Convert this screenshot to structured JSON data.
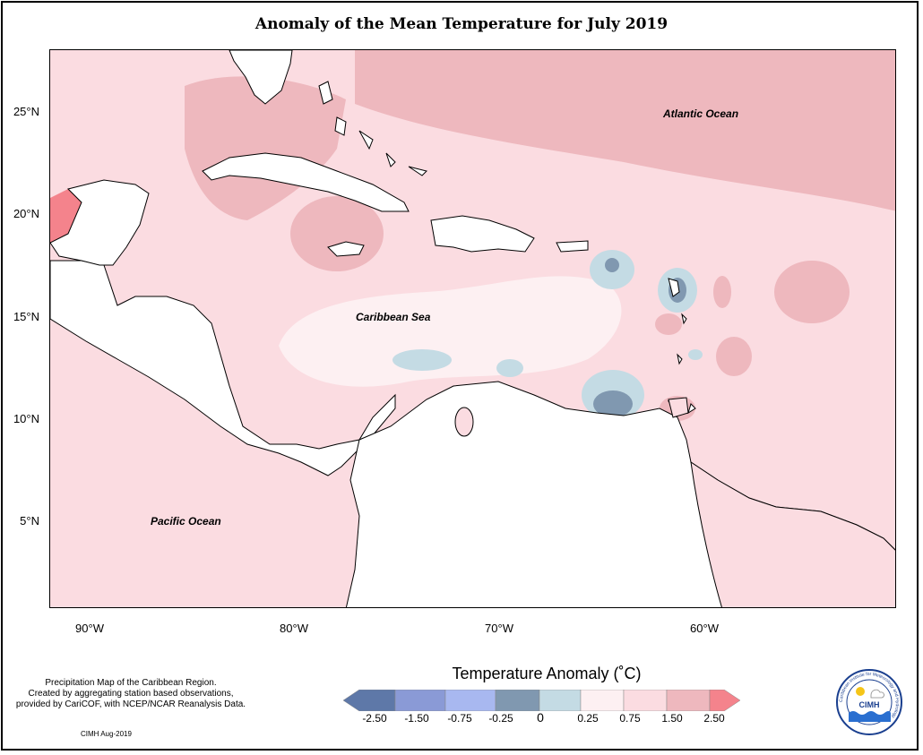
{
  "title": "Anomaly of the Mean Temperature for July 2019",
  "axes": {
    "lat_ticks": [
      "25°N",
      "20°N",
      "15°N",
      "10°N",
      "5°N"
    ],
    "lon_ticks": [
      "90°W",
      "80°W",
      "70°W",
      "60°W"
    ]
  },
  "labels": {
    "atlantic": "Atlantic Ocean",
    "caribbean": "Caribbean Sea",
    "pacific": "Pacific Ocean"
  },
  "credit": {
    "line1": "Precipitation Map of the Caribbean Region.",
    "line2": "Created by aggregating station based observations,",
    "line3": "provided by CariCOF, with NCEP/NCAR Reanalysis Data.",
    "date": "CIMH Aug-2019"
  },
  "legend": {
    "title": "Temperature Anomaly (˚C)",
    "labels": [
      "-2.50",
      "-1.50",
      "-0.75",
      "-0.25",
      "0",
      "0.25",
      "0.75",
      "1.50",
      "2.50"
    ],
    "colors": [
      "#5e78a8",
      "#8a9ad6",
      "#a8b8f0",
      "#8098b0",
      "#c4dbe4",
      "#fdf0f2",
      "#fbdce1",
      "#eeb8be",
      "#f4838c"
    ]
  },
  "logo": {
    "text": "CIMH",
    "ring_text": "Caribbean Institute for Meteorology and Hydrology"
  },
  "colors": {
    "anom_high": "#eeb8be",
    "anom_mid": "#fbdce1",
    "anom_low": "#fdf0f2",
    "anom_cool": "#c4dbe4",
    "anom_cold": "#8098b0",
    "anom_hot": "#f4838c"
  }
}
